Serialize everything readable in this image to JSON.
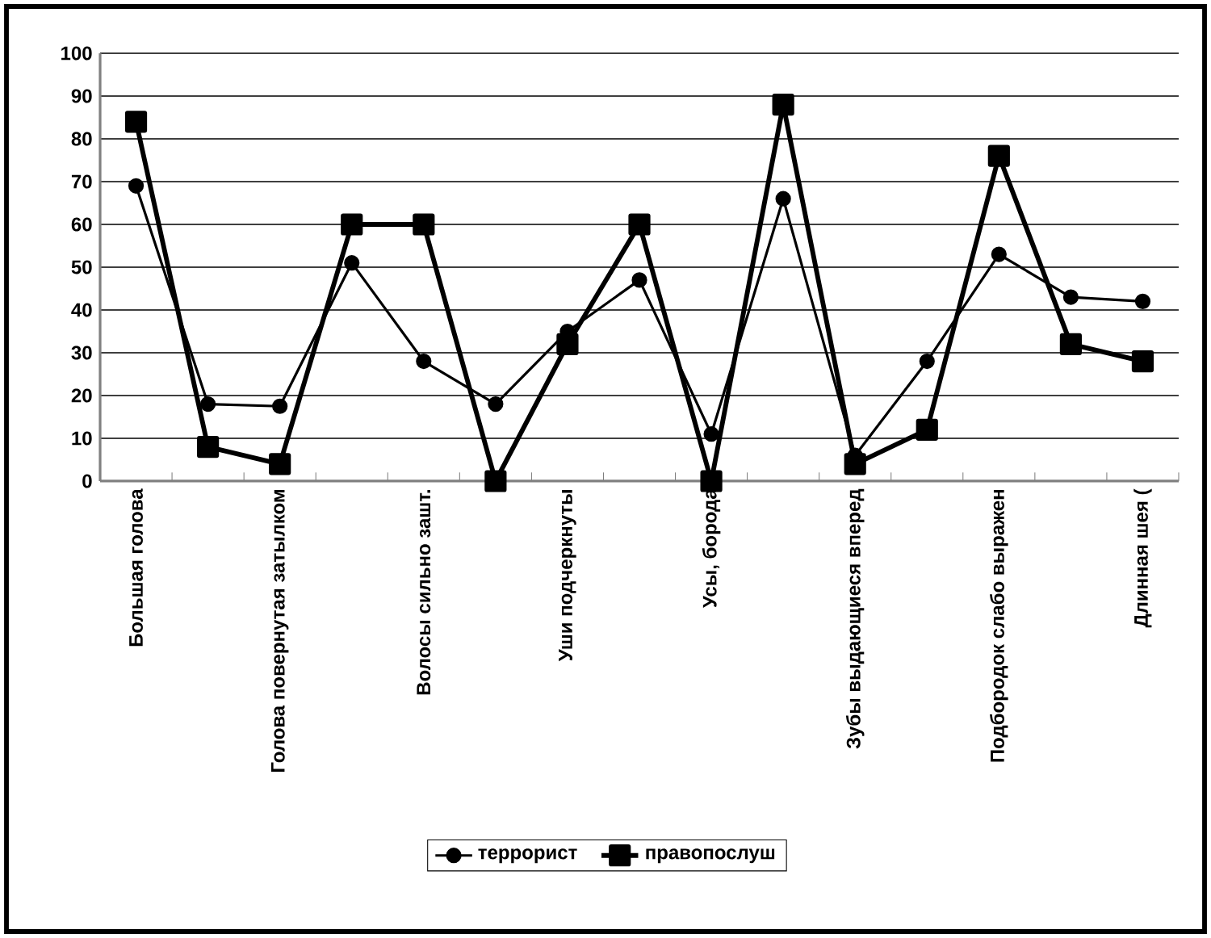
{
  "chart_data": {
    "type": "line",
    "categories": [
      "Большая голова",
      null,
      "Голова повернутая затылком",
      null,
      "Волосы сильно зашт.",
      null,
      "Уши подчеркнуты",
      null,
      "Усы,  борода",
      null,
      "Зубы выдающиеся вперед",
      null,
      "Подбородок слабо выражен",
      null,
      "Длинная шея ("
    ],
    "series": [
      {
        "name": "террорист",
        "color": "#000000",
        "marker": "circle",
        "values": [
          69,
          18,
          17.5,
          51,
          28,
          18,
          35,
          47,
          11,
          66,
          6,
          28,
          53,
          43,
          42
        ]
      },
      {
        "name": "правопослуш",
        "color": "#000000",
        "marker": "square",
        "values": [
          84,
          8,
          4,
          60,
          60,
          0,
          32,
          60,
          0,
          88,
          4,
          12,
          76,
          32,
          28
        ]
      }
    ],
    "ylim": [
      0,
      100
    ],
    "yticks": [
      0,
      10,
      20,
      30,
      40,
      50,
      60,
      70,
      80,
      90,
      100
    ],
    "grid": "y",
    "legend": "bottom"
  }
}
